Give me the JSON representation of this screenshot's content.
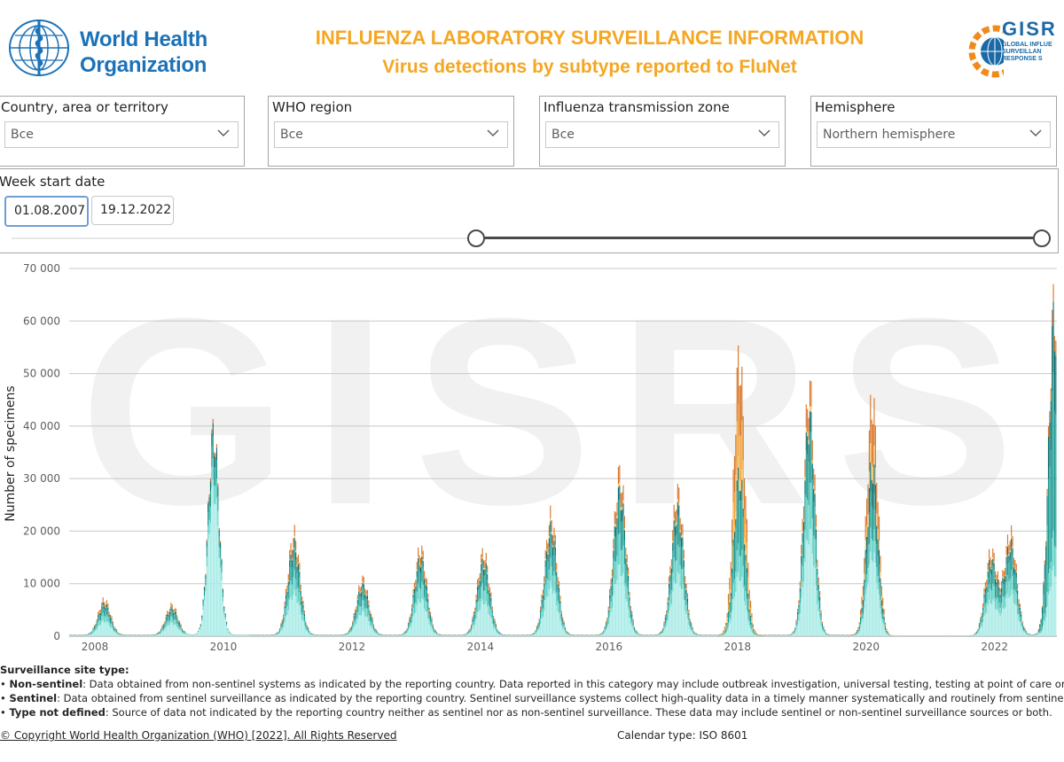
{
  "header": {
    "who_logo_line1": "World Health",
    "who_logo_line2": "Organization",
    "title": "INFLUENZA LABORATORY SURVEILLANCE INFORMATION",
    "subtitle": "Virus detections by subtype reported to FluNet",
    "gisrs_logo_word": "GISR",
    "gisrs_logo_line1": "GLOBAL INFLUE",
    "gisrs_logo_line2": "SURVEILLAN",
    "gisrs_logo_line3": "RESPONSE S",
    "accent_color": "#f5a623",
    "brand_color": "#1c72b8"
  },
  "filters": [
    {
      "label": "Country, area or territory",
      "value": "Все"
    },
    {
      "label": "WHO region",
      "value": "Все"
    },
    {
      "label": "Influenza transmission zone",
      "value": "Все"
    },
    {
      "label": "Hemisphere",
      "value": "Northern hemisphere"
    }
  ],
  "date_range": {
    "label": "Week start date",
    "start": "01.08.2007",
    "end": "19.12.2022",
    "slider_start_fraction": 0.455,
    "slider_end_fraction": 1.0
  },
  "watermark": "GISRS",
  "chart_data": {
    "type": "bar",
    "stacked": true,
    "ylabel": "Number of specimens",
    "ylim": [
      0,
      70000
    ],
    "yticks": [
      0,
      10000,
      20000,
      30000,
      40000,
      50000,
      60000,
      70000
    ],
    "ytick_labels": [
      "0",
      "10 000",
      "20 000",
      "30 000",
      "40 000",
      "50 000",
      "60 000",
      "70 000"
    ],
    "xlim": [
      2007.6,
      2022.97
    ],
    "xticks": [
      2008,
      2010,
      2012,
      2014,
      2016,
      2018,
      2020,
      2022
    ],
    "xtick_labels": [
      "2008",
      "2010",
      "2012",
      "2014",
      "2016",
      "2018",
      "2020",
      "2022"
    ],
    "grid": true,
    "colors": {
      "a_h1n1pdm": "#a8ebe6",
      "a_h1": "#5fd1c6",
      "a_h3": "#1f9b93",
      "a_unsubtyped": "#0f6e6a",
      "b_victoria": "#f7c46c",
      "b_yamagata": "#f3a83c",
      "b_lineage_undetermined": "#d9762a"
    },
    "season_peaks": [
      {
        "year": 2008.15,
        "total": 7300
      },
      {
        "year": 2009.2,
        "total": 6200
      },
      {
        "year": 2009.85,
        "total": 42800
      },
      {
        "year": 2011.1,
        "total": 21000
      },
      {
        "year": 2012.17,
        "total": 11600
      },
      {
        "year": 2013.07,
        "total": 18000
      },
      {
        "year": 2014.05,
        "total": 17200
      },
      {
        "year": 2015.1,
        "total": 24700
      },
      {
        "year": 2016.17,
        "total": 33700
      },
      {
        "year": 2017.07,
        "total": 29700
      },
      {
        "year": 2018.03,
        "total": 57800
      },
      {
        "year": 2019.12,
        "total": 51700
      },
      {
        "year": 2020.1,
        "total": 48900
      },
      {
        "year": 2021.95,
        "total": 17300
      },
      {
        "year": 2022.25,
        "total": 21200
      },
      {
        "year": 2022.93,
        "total": 69300
      }
    ]
  },
  "notes": {
    "heading": "Surveillance site type:",
    "items": [
      {
        "term": "Non-sentinel",
        "text": ": Data obtained from non-sentinel systems as indicated by the reporting country. Data reported in this category may include outbreak investigation, universal testing, testing at point of care or other systems apart from sentinel"
      },
      {
        "term": "Sentinel",
        "text": ": Data obtained from sentinel surveillance as indicated by the reporting country. Sentinel surveillance systems collect high-quality data in a timely manner systematically and routinely from sentinel surveillance sites representatives of"
      },
      {
        "term": "Type not defined",
        "text": ": Source of data not indicated by the reporting country neither as sentinel nor as non-sentinel surveillance. These data may include sentinel or non-sentinel surveillance sources or both."
      }
    ]
  },
  "footer": {
    "copyright": "© Copyright World Health Organization (WHO) [2022]. All Rights Reserved",
    "calendar": "Calendar type: ISO 8601"
  }
}
